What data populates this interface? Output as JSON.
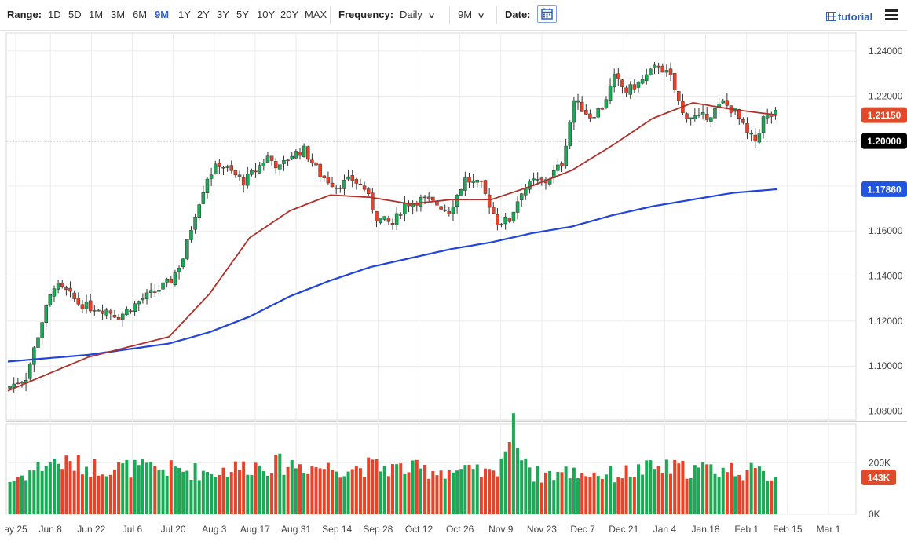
{
  "toolbar": {
    "range_label": "Range:",
    "ranges": [
      "1D",
      "5D",
      "1M",
      "3M",
      "6M",
      "9M",
      "1Y",
      "2Y",
      "3Y",
      "5Y",
      "10Y",
      "20Y",
      "MAX"
    ],
    "active_range": "9M",
    "frequency_label": "Frequency:",
    "frequency_value": "Daily",
    "period_value": "9M",
    "date_label": "Date:",
    "tutorial_label": "tutorial"
  },
  "chart_data": {
    "type": "candlestick",
    "x_ticks": [
      "ay 25",
      "Jun 8",
      "Jun 22",
      "Jul 6",
      "Jul 20",
      "Aug 3",
      "Aug 17",
      "Aug 31",
      "Sep 14",
      "Sep 28",
      "Oct 12",
      "Oct 26",
      "Nov 9",
      "Nov 23",
      "Dec 7",
      "Dec 21",
      "Jan 4",
      "Jan 18",
      "Feb 1",
      "Feb 15",
      "Mar 1"
    ],
    "y_ticks": [
      "1.24000",
      "1.22000",
      "1.20000",
      "1.18000",
      "1.16000",
      "1.14000",
      "1.12000",
      "1.10000",
      "1.08000"
    ],
    "ylim": [
      1.076,
      1.248
    ],
    "volume_ticks": [
      "200K",
      "0K"
    ],
    "volume_ylim": [
      0,
      350000
    ],
    "price_badges": [
      {
        "label": "1.21150",
        "value": 1.2115,
        "color": "#e04a2a"
      },
      {
        "label": "1.20000",
        "value": 1.2,
        "color": "#000000"
      },
      {
        "label": "1.17860",
        "value": 1.1786,
        "color": "#2255dd"
      }
    ],
    "volume_badge": {
      "label": "143K",
      "value": 143000,
      "color": "#e04a2a"
    },
    "horizontal_line": 1.2,
    "up_color": "#1aaa55",
    "down_color": "#e8432a",
    "ma_short_color": "#b0302a",
    "ma_long_color": "#2244dd",
    "candle_count": 191,
    "path": [
      [
        0,
        1.09
      ],
      [
        5,
        1.095
      ],
      [
        9,
        1.12
      ],
      [
        12,
        1.136
      ],
      [
        15,
        1.133
      ],
      [
        18,
        1.128
      ],
      [
        21,
        1.126
      ],
      [
        25,
        1.125
      ],
      [
        28,
        1.122
      ],
      [
        31,
        1.126
      ],
      [
        34,
        1.13
      ],
      [
        37,
        1.133
      ],
      [
        41,
        1.138
      ],
      [
        44,
        1.148
      ],
      [
        47,
        1.168
      ],
      [
        50,
        1.184
      ],
      [
        53,
        1.19
      ],
      [
        56,
        1.186
      ],
      [
        59,
        1.182
      ],
      [
        62,
        1.187
      ],
      [
        65,
        1.193
      ],
      [
        68,
        1.188
      ],
      [
        71,
        1.194
      ],
      [
        74,
        1.196
      ],
      [
        78,
        1.185
      ],
      [
        82,
        1.18
      ],
      [
        86,
        1.183
      ],
      [
        89,
        1.179
      ],
      [
        92,
        1.166
      ],
      [
        96,
        1.163
      ],
      [
        99,
        1.172
      ],
      [
        103,
        1.174
      ],
      [
        107,
        1.172
      ],
      [
        110,
        1.169
      ],
      [
        114,
        1.183
      ],
      [
        118,
        1.18
      ],
      [
        122,
        1.164
      ],
      [
        125,
        1.165
      ],
      [
        128,
        1.178
      ],
      [
        131,
        1.182
      ],
      [
        134,
        1.182
      ],
      [
        138,
        1.19
      ],
      [
        141,
        1.218
      ],
      [
        145,
        1.211
      ],
      [
        148,
        1.215
      ],
      [
        151,
        1.228
      ],
      [
        154,
        1.222
      ],
      [
        158,
        1.227
      ],
      [
        162,
        1.234
      ],
      [
        165,
        1.228
      ],
      [
        168,
        1.212
      ],
      [
        172,
        1.21
      ],
      [
        175,
        1.212
      ],
      [
        178,
        1.217
      ],
      [
        181,
        1.213
      ],
      [
        184,
        1.203
      ],
      [
        186,
        1.2
      ],
      [
        188,
        1.21
      ],
      [
        191,
        1.212
      ]
    ],
    "ma_short": [
      [
        0,
        1.089
      ],
      [
        20,
        1.104
      ],
      [
        40,
        1.113
      ],
      [
        50,
        1.132
      ],
      [
        60,
        1.157
      ],
      [
        70,
        1.169
      ],
      [
        80,
        1.176
      ],
      [
        90,
        1.175
      ],
      [
        100,
        1.172
      ],
      [
        110,
        1.174
      ],
      [
        120,
        1.174
      ],
      [
        130,
        1.18
      ],
      [
        140,
        1.187
      ],
      [
        150,
        1.198
      ],
      [
        160,
        1.21
      ],
      [
        170,
        1.217
      ],
      [
        180,
        1.214
      ],
      [
        191,
        1.2115
      ]
    ],
    "ma_long": [
      [
        0,
        1.102
      ],
      [
        20,
        1.105
      ],
      [
        40,
        1.11
      ],
      [
        50,
        1.115
      ],
      [
        60,
        1.122
      ],
      [
        70,
        1.131
      ],
      [
        80,
        1.138
      ],
      [
        90,
        1.144
      ],
      [
        100,
        1.148
      ],
      [
        110,
        1.152
      ],
      [
        120,
        1.155
      ],
      [
        130,
        1.159
      ],
      [
        140,
        1.162
      ],
      [
        150,
        1.167
      ],
      [
        160,
        1.171
      ],
      [
        170,
        1.174
      ],
      [
        180,
        1.177
      ],
      [
        191,
        1.1786
      ]
    ],
    "volume_path": [
      [
        0,
        125000
      ],
      [
        10,
        200000
      ],
      [
        20,
        180000
      ],
      [
        40,
        170000
      ],
      [
        50,
        160000
      ],
      [
        60,
        185000
      ],
      [
        70,
        190000
      ],
      [
        80,
        175000
      ],
      [
        90,
        180000
      ],
      [
        100,
        170000
      ],
      [
        110,
        165000
      ],
      [
        120,
        150000
      ],
      [
        125,
        320000
      ],
      [
        130,
        150000
      ],
      [
        140,
        160000
      ],
      [
        150,
        150000
      ],
      [
        160,
        175000
      ],
      [
        170,
        170000
      ],
      [
        180,
        170000
      ],
      [
        191,
        143000
      ]
    ]
  }
}
